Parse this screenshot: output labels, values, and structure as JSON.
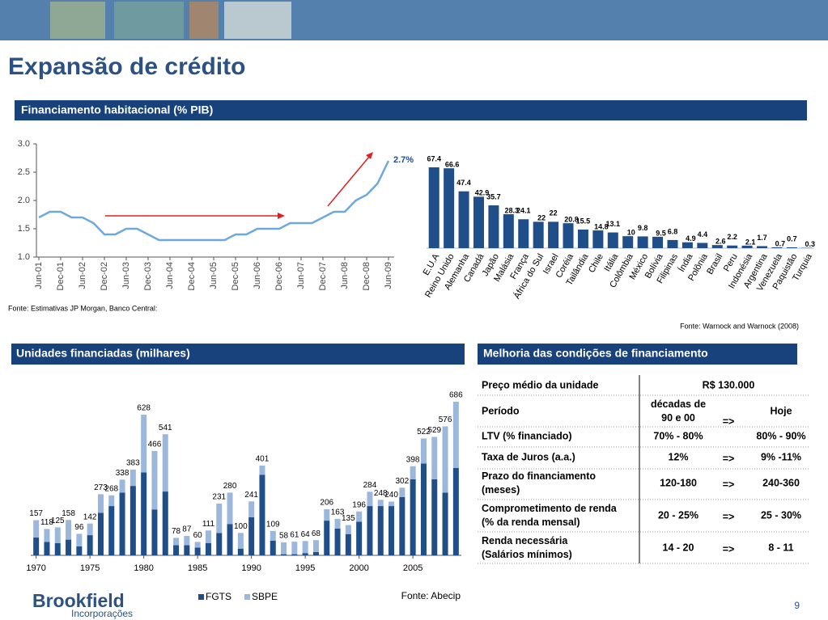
{
  "title": "Expansão de crédito",
  "panels": [
    "Financiamento habitacional (% PIB)",
    "Unidades financiadas (milhares)",
    "Melhoria das condições de financiamento"
  ],
  "chart_data": [
    {
      "type": "line",
      "categories": [
        "Jun-01",
        null,
        "Dec-01",
        null,
        "Jun-02",
        null,
        "Dec-02",
        null,
        "Jun-03",
        null,
        "Dec-03",
        null,
        "Jun-04",
        null,
        "Dec-04",
        null,
        "Jun-05",
        null,
        "Dec-05",
        null,
        "Jun-06",
        null,
        "Dec-06",
        null,
        "Jun-07",
        null,
        "Dec-07",
        null,
        "Jun-08",
        null,
        "Dec-08",
        null,
        "Jun-09"
      ],
      "values": [
        1.7,
        1.8,
        1.8,
        1.7,
        1.7,
        1.6,
        1.4,
        1.4,
        1.5,
        1.5,
        1.4,
        1.3,
        1.3,
        1.3,
        1.3,
        1.3,
        1.3,
        1.3,
        1.4,
        1.4,
        1.5,
        1.5,
        1.5,
        1.6,
        1.6,
        1.6,
        1.7,
        1.8,
        1.8,
        2.0,
        2.1,
        2.3,
        2.7
      ],
      "color": "#6fa8dc",
      "ylim": [
        1,
        3
      ],
      "yticks": [
        {
          "value": 1,
          "label": "1.0"
        },
        {
          "value": 1.5,
          "label": "1.5"
        },
        {
          "value": 2,
          "label": "2.0"
        },
        {
          "value": 2.5,
          "label": "2.5"
        },
        {
          "value": 3,
          "label": "3.0"
        }
      ],
      "annotation": "2.7%",
      "source": "Fonte: Estimativas JP Morgan, Banco Central:"
    },
    {
      "type": "bar",
      "categories": [
        "E.U.A",
        "Reino Unido",
        "Alemanha",
        "Canadá",
        "Japão",
        "Malásia",
        "França",
        "África do Sul",
        "Israel",
        "Coréia",
        "Tailândia",
        "Chile",
        "Itália",
        "Colômbia",
        "México",
        "Bolívia",
        "Filipinas",
        "Índia",
        "Polônia",
        "Brasil",
        "Peru",
        "Indonésia",
        "Argentina",
        "Venezuela",
        "Paquistão",
        "Turquia"
      ],
      "values": [
        67.4,
        66.6,
        47.4,
        42.9,
        35.7,
        28.3,
        24.1,
        22,
        22,
        20.8,
        15.5,
        14.8,
        13.1,
        10,
        9.8,
        9.5,
        6.8,
        4.9,
        4.4,
        2.6,
        2.2,
        2.1,
        1.7,
        0.7,
        0.7,
        0.3
      ],
      "color": "#1f4e89",
      "source": "Fonte: Warnock and Warnock (2008)"
    },
    {
      "type": "bar",
      "stacked": true,
      "categories": [
        "1970",
        null,
        null,
        null,
        null,
        "1975",
        null,
        null,
        null,
        null,
        "1980",
        null,
        null,
        null,
        null,
        "1985",
        null,
        null,
        null,
        null,
        "1990",
        null,
        null,
        null,
        null,
        "1995",
        null,
        null,
        null,
        null,
        "2000",
        null,
        null,
        null,
        null,
        "2005",
        null,
        null,
        null,
        null
      ],
      "series": [
        {
          "name": "FGTS",
          "color": "#1f4e89",
          "values": [
            80,
            60,
            55,
            70,
            40,
            90,
            190,
            220,
            280,
            310,
            370,
            205,
            285,
            45,
            45,
            35,
            55,
            100,
            140,
            30,
            170,
            360,
            65,
            5,
            5,
            10,
            15,
            155,
            120,
            95,
            150,
            220,
            220,
            220,
            260,
            340,
            410,
            340,
            280,
            390
          ]
        },
        {
          "name": "SBPE",
          "color": "#9cb7dc",
          "values": [
            77,
            58,
            70,
            88,
            56,
            52,
            83,
            48,
            58,
            73,
            258,
            261,
            256,
            33,
            42,
            25,
            56,
            131,
            140,
            70,
            71,
            41,
            44,
            53,
            56,
            54,
            53,
            51,
            43,
            40,
            46,
            64,
            28,
            20,
            42,
            58,
            112,
            189,
            296,
            296
          ]
        }
      ],
      "totals": [
        157,
        118,
        125,
        158,
        96,
        142,
        273,
        268,
        338,
        383,
        628,
        466,
        541,
        78,
        87,
        60,
        111,
        231,
        280,
        100,
        241,
        401,
        109,
        58,
        61,
        64,
        68,
        206,
        163,
        135,
        196,
        284,
        248,
        240,
        302,
        398,
        522,
        529,
        576,
        686
      ],
      "source": "Fonte: Abecip"
    }
  ],
  "table": {
    "rows": [
      {
        "label": [
          "Preço médio da unidade"
        ],
        "value": [
          "R$ 130.000"
        ]
      },
      {
        "label": [
          "Período"
        ],
        "from": [
          "décadas de",
          "90  e 00"
        ],
        "arrow": "=>",
        "to": [
          "Hoje"
        ]
      },
      {
        "label": [
          "LTV (% financiado)"
        ],
        "from": [
          "70% - 80%"
        ],
        "to": [
          "80% - 90%"
        ]
      },
      {
        "label": [
          "Taxa de Juros (a.a.)"
        ],
        "from": [
          "12%"
        ],
        "arrow": "=>",
        "to": [
          "9% -11%"
        ]
      },
      {
        "label": [
          "Prazo do financiamento",
          "(meses)"
        ],
        "from": [
          "120-180"
        ],
        "arrow": "=>",
        "to": [
          "240-360"
        ]
      },
      {
        "label": [
          "Comprometimento de renda",
          "(% da renda mensal)"
        ],
        "from": [
          "20 - 25%"
        ],
        "arrow": "=>",
        "to": [
          "25 - 30%"
        ]
      },
      {
        "label": [
          "Renda necessária",
          "(Salários mínimos)"
        ],
        "from": [
          "14 - 20"
        ],
        "arrow": "=>",
        "to": [
          "8 - 11"
        ]
      }
    ]
  },
  "logo": {
    "name": "Brookfield",
    "subtitle": "Incorporações"
  },
  "page_number": "9"
}
